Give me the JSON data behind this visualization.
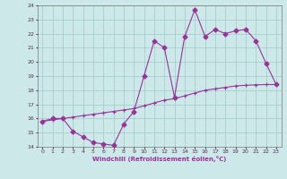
{
  "xlabel": "Windchill (Refroidissement éolien,°C)",
  "xlim": [
    -0.5,
    23.5
  ],
  "ylim": [
    14,
    24
  ],
  "xticks": [
    0,
    1,
    2,
    3,
    4,
    5,
    6,
    7,
    8,
    9,
    10,
    11,
    12,
    13,
    14,
    15,
    16,
    17,
    18,
    19,
    20,
    21,
    22,
    23
  ],
  "yticks": [
    14,
    15,
    16,
    17,
    18,
    19,
    20,
    21,
    22,
    23,
    24
  ],
  "bg_color": "#cde8e8",
  "line_color": "#993399",
  "grid_color": "#9fc9c9",
  "line1_x": [
    0,
    1,
    2,
    3,
    4,
    5,
    6,
    7,
    8,
    9,
    10,
    11,
    12,
    13,
    14,
    15,
    16,
    17,
    18,
    19,
    20,
    21,
    22,
    23
  ],
  "line1_y": [
    15.8,
    16.0,
    16.0,
    15.1,
    14.7,
    14.3,
    14.2,
    14.1,
    15.6,
    16.5,
    19.0,
    21.5,
    21.0,
    17.5,
    21.8,
    23.7,
    21.8,
    22.3,
    22.0,
    22.2,
    22.3,
    21.5,
    19.9,
    18.4
  ],
  "line2_x": [
    0,
    1,
    2,
    3,
    4,
    5,
    6,
    7,
    8,
    9,
    10,
    11,
    12,
    13,
    14,
    15,
    16,
    17,
    18,
    19,
    20,
    21,
    22,
    23
  ],
  "line2_y": [
    15.8,
    15.9,
    16.0,
    16.1,
    16.2,
    16.3,
    16.4,
    16.5,
    16.6,
    16.7,
    16.9,
    17.1,
    17.3,
    17.4,
    17.6,
    17.8,
    18.0,
    18.1,
    18.2,
    18.3,
    18.35,
    18.38,
    18.4,
    18.4
  ]
}
